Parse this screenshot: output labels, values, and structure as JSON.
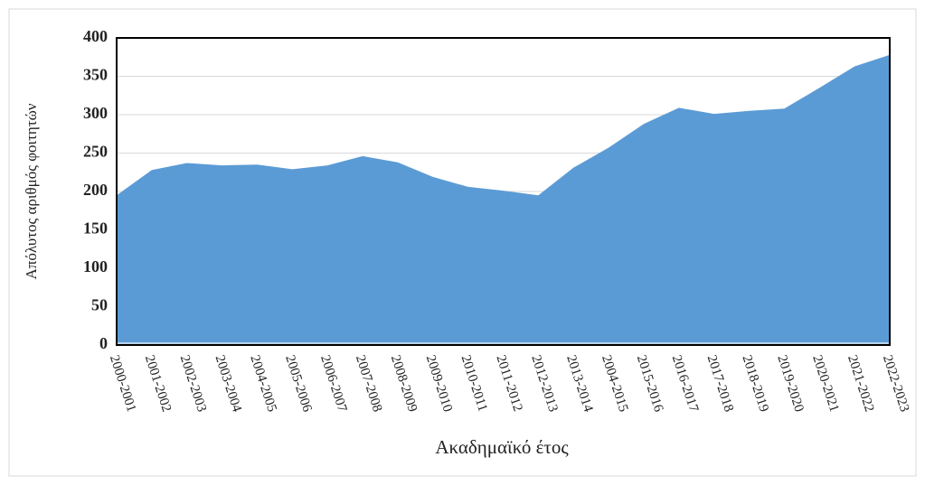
{
  "chart_data": {
    "type": "area",
    "x_label": "Ακαδημαϊκό έτος",
    "y_label": "Απόλυτος αριθμός φοιτητών",
    "categories": [
      "2000-2001",
      "2001-2002",
      "2002-2003",
      "2003-2004",
      "2004-2005",
      "2005-2006",
      "2006-2007",
      "2007-2008",
      "2008-2009",
      "2009-2010",
      "2010-2011",
      "2011-2012",
      "2012-2013",
      "2013-2014",
      "2004-2015",
      "2015-2016",
      "2016-2017",
      "2017-2018",
      "2018-2019",
      "2019-2020",
      "2020-2021",
      "2021-2022",
      "2022-2023"
    ],
    "values": [
      195,
      228,
      237,
      234,
      235,
      229,
      234,
      246,
      238,
      219,
      206,
      201,
      195,
      231,
      257,
      288,
      309,
      301,
      305,
      308,
      335,
      363,
      378
    ],
    "color": "#5b9bd5",
    "ylim": [
      0,
      400
    ],
    "yticks": [
      0,
      50,
      100,
      150,
      200,
      250,
      300,
      350,
      400
    ],
    "grid": true
  }
}
